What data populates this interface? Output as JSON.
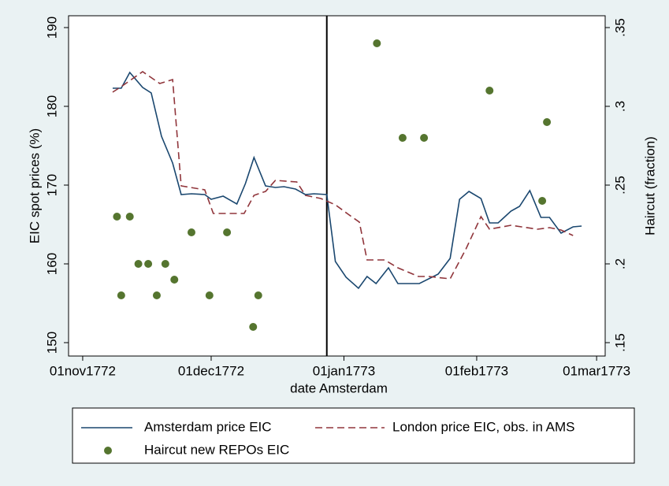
{
  "chart_data": {
    "type": "line",
    "ylabel": "EIC spot prices (%)",
    "y2label": "Haircut (fraction)",
    "xlabel": "date Amsterdam",
    "xlim": [
      -3.3,
      122
    ],
    "xticks": [
      {
        "value": 0,
        "label": "01nov1772"
      },
      {
        "value": 30,
        "label": "01dec1772"
      },
      {
        "value": 61,
        "label": "01jan1773"
      },
      {
        "value": 92,
        "label": "01feb1773"
      },
      {
        "value": 120,
        "label": "01mar1773"
      }
    ],
    "ylim": [
      148.3,
      191.5
    ],
    "yticks": [
      150,
      160,
      170,
      180,
      190
    ],
    "y2lim": [
      0.1415,
      0.3575
    ],
    "y2ticks": [
      {
        "value": 0.15,
        "label": ".15"
      },
      {
        "value": 0.2,
        "label": ".2"
      },
      {
        "value": 0.25,
        "label": ".25"
      },
      {
        "value": 0.3,
        "label": ".3"
      },
      {
        "value": 0.35,
        "label": ".35"
      }
    ],
    "vline": 57,
    "series": [
      {
        "name": "Amsterdam price EIC",
        "type": "line",
        "dash": false,
        "color": "#1a476f",
        "x": [
          7,
          9,
          11,
          14,
          16,
          18.4,
          21,
          23,
          25.4,
          28.5,
          30,
          32.8,
          36,
          38,
          40,
          42.7,
          45,
          47,
          49.7,
          52,
          54,
          57,
          59,
          61.5,
          64.4,
          66.4,
          68.5,
          71.4,
          73.6,
          78.6,
          83,
          85.8,
          88,
          90.2,
          93,
          95,
          97,
          100,
          102,
          104.4,
          107,
          109,
          111.7,
          114.5,
          116.5
        ],
        "values": [
          182.3,
          182.3,
          184.3,
          182.4,
          181.7,
          176.2,
          172.8,
          168.8,
          168.9,
          168.8,
          168.2,
          168.6,
          167.6,
          170.2,
          173.5,
          169.9,
          169.7,
          169.8,
          169.5,
          168.8,
          168.9,
          168.8,
          160.3,
          158.3,
          156.9,
          158.4,
          157.5,
          159.5,
          157.5,
          157.5,
          158.7,
          160.7,
          168.2,
          169.2,
          168.3,
          165.2,
          165.2,
          166.7,
          167.3,
          169.3,
          165.9,
          165.9,
          163.9,
          164.7,
          164.8
        ]
      },
      {
        "name": "London price EIC, obs. in AMS",
        "type": "line",
        "dash": true,
        "color": "#90353b",
        "x": [
          7,
          9,
          14,
          18,
          21,
          23,
          28.5,
          30.5,
          37.7,
          40,
          42.7,
          45,
          50,
          52,
          55.6,
          59,
          62,
          64.6,
          66.4,
          70.5,
          73.6,
          78.4,
          80.8,
          85.8,
          89.5,
          93,
          95,
          100,
          106.2,
          109,
          111.7,
          114.5
        ],
        "values": [
          181.8,
          182.5,
          184.4,
          182.9,
          183.4,
          169.9,
          169.4,
          166.4,
          166.4,
          168.7,
          169.2,
          170.6,
          170.4,
          168.7,
          168.3,
          167.5,
          166.3,
          165.3,
          160.5,
          160.5,
          159.5,
          158.4,
          158.4,
          158.1,
          161.9,
          166,
          164.4,
          164.9,
          164.4,
          164.6,
          164.3,
          163.6
        ]
      },
      {
        "name": "Haircut new REPOs EIC",
        "type": "scatter",
        "axis": "y2",
        "color": "#55752f",
        "x": [
          8,
          9,
          11,
          13,
          15.3,
          17.3,
          19.3,
          21.4,
          25.4,
          29.6,
          33.7,
          39.8,
          41,
          68.7,
          74.7,
          79.7,
          95,
          107.3,
          108.4
        ],
        "values": [
          0.23,
          0.18,
          0.23,
          0.2,
          0.2,
          0.18,
          0.2,
          0.19,
          0.22,
          0.18,
          0.22,
          0.16,
          0.18,
          0.34,
          0.28,
          0.28,
          0.31,
          0.24,
          0.29
        ]
      }
    ]
  }
}
